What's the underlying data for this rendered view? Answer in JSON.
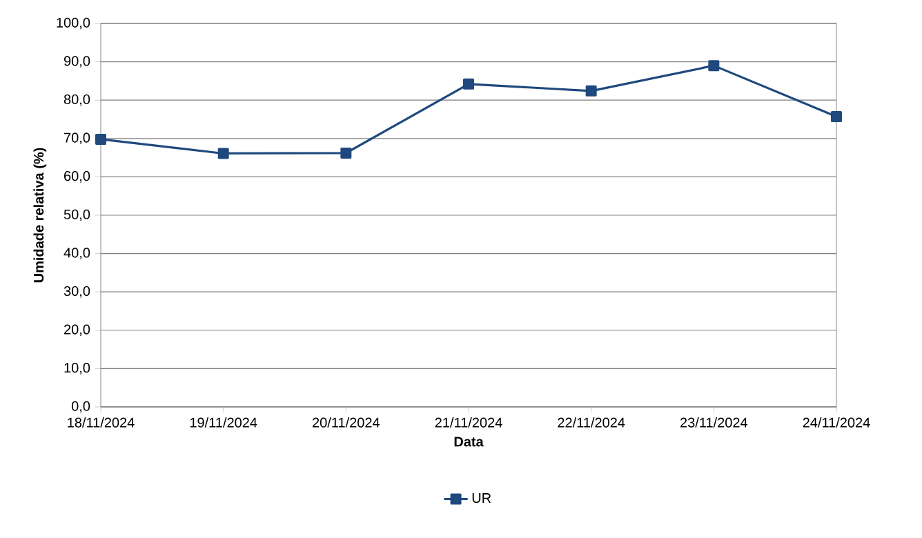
{
  "chart_data": {
    "type": "line",
    "xlabel": "Data",
    "ylabel": "Umidade relativa (%)",
    "categories": [
      "18/11/2024",
      "19/11/2024",
      "20/11/2024",
      "21/11/2024",
      "22/11/2024",
      "23/11/2024",
      "24/11/2024"
    ],
    "series": [
      {
        "name": "UR",
        "color": "#1f497d",
        "values": [
          69.8,
          66.1,
          66.2,
          84.2,
          82.4,
          89.0,
          75.7
        ]
      }
    ],
    "ylim": [
      0,
      100
    ],
    "yticks": [
      {
        "value": 0,
        "label": "0,0"
      },
      {
        "value": 10,
        "label": "10,0"
      },
      {
        "value": 20,
        "label": "20,0"
      },
      {
        "value": 30,
        "label": "30,0"
      },
      {
        "value": 40,
        "label": "40,0"
      },
      {
        "value": 50,
        "label": "50,0"
      },
      {
        "value": 60,
        "label": "60,0"
      },
      {
        "value": 70,
        "label": "70,0"
      },
      {
        "value": 80,
        "label": "80,0"
      },
      {
        "value": 90,
        "label": "90,0"
      },
      {
        "value": 100,
        "label": "100,0"
      }
    ],
    "grid": "y",
    "legend": "bottom",
    "marker": "square",
    "line_style": "solid"
  }
}
